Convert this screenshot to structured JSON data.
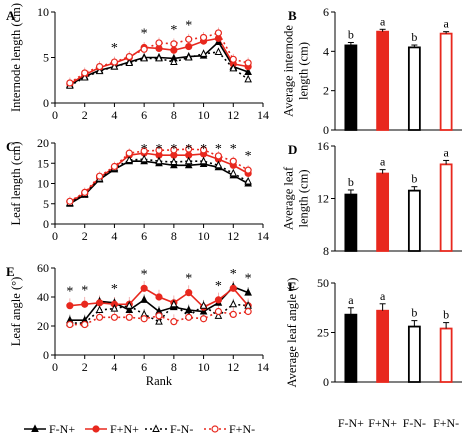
{
  "series_styles": [
    {
      "name": "F-N+",
      "color": "#000000",
      "dash": "",
      "marker": "tri-filled"
    },
    {
      "name": "F+N+",
      "color": "#e8281e",
      "dash": "",
      "marker": "circle-filled"
    },
    {
      "name": "F-N-",
      "color": "#000000",
      "dash": "2,3",
      "marker": "tri-open"
    },
    {
      "name": "F+N-",
      "color": "#e8281e",
      "dash": "2,3",
      "marker": "circle-open"
    }
  ],
  "chart_data": [
    {
      "panel": "A",
      "type": "line",
      "ylabel": "Internode length (cm)",
      "xlabel": "",
      "xlim": [
        0,
        14
      ],
      "ylim": [
        0,
        10
      ],
      "xticks": [
        0,
        2,
        4,
        6,
        8,
        10,
        12,
        14
      ],
      "yticks": [
        0,
        5,
        10
      ],
      "x": [
        1,
        2,
        3,
        4,
        5,
        6,
        7,
        8,
        9,
        10,
        11,
        12,
        13
      ],
      "series": [
        {
          "name": "F-N+",
          "values": [
            2.0,
            2.9,
            3.6,
            4.0,
            4.5,
            5.0,
            5.0,
            4.9,
            5.1,
            5.2,
            6.7,
            4.0,
            3.4
          ]
        },
        {
          "name": "F+N+",
          "values": [
            2.1,
            3.1,
            3.9,
            4.4,
            5.0,
            6.1,
            6.0,
            5.8,
            6.2,
            6.8,
            7.1,
            4.3,
            4.0
          ]
        },
        {
          "name": "F-N-",
          "values": [
            1.9,
            2.8,
            3.5,
            4.0,
            4.4,
            4.9,
            4.9,
            4.5,
            5.0,
            5.4,
            5.6,
            3.8,
            2.6
          ]
        },
        {
          "name": "F+N-",
          "values": [
            2.2,
            3.3,
            4.0,
            4.5,
            5.1,
            5.9,
            6.6,
            6.5,
            7.0,
            7.2,
            7.7,
            4.8,
            4.4
          ]
        }
      ],
      "significance_x": [
        4,
        6,
        8,
        9
      ],
      "error_bars_visible": true
    },
    {
      "panel": "B",
      "type": "bar",
      "ylabel": "Average internode length (cm)",
      "categories": [
        "F-N+",
        "F+N+",
        "F-N-",
        "F+N-"
      ],
      "values": [
        4.3,
        5.0,
        4.2,
        4.9
      ],
      "errors": [
        0.15,
        0.12,
        0.12,
        0.1
      ],
      "letters": [
        "b",
        "a",
        "b",
        "a"
      ],
      "ylim": [
        0,
        6
      ],
      "yticks": [
        0,
        2,
        4,
        6
      ]
    },
    {
      "panel": "C",
      "type": "line",
      "ylabel": "Leaf length (cm)",
      "xlabel": "",
      "xlim": [
        0,
        14
      ],
      "ylim": [
        0,
        20
      ],
      "xticks": [
        0,
        2,
        4,
        6,
        8,
        10,
        12,
        14
      ],
      "yticks": [
        0,
        5,
        10,
        15,
        20
      ],
      "x": [
        1,
        2,
        3,
        4,
        5,
        6,
        7,
        8,
        9,
        10,
        11,
        12,
        13
      ],
      "series": [
        {
          "name": "F-N+",
          "values": [
            5.0,
            7.2,
            11.0,
            13.5,
            15.5,
            15.5,
            15.0,
            14.5,
            14.5,
            14.8,
            14.0,
            12.0,
            10.0
          ]
        },
        {
          "name": "F+N+",
          "values": [
            5.5,
            7.5,
            11.5,
            14.0,
            17.0,
            17.5,
            17.0,
            17.0,
            17.0,
            17.3,
            16.0,
            14.5,
            12.5
          ]
        },
        {
          "name": "F-N-",
          "values": [
            5.2,
            7.4,
            11.2,
            13.8,
            15.8,
            16.0,
            15.5,
            15.3,
            15.5,
            15.5,
            14.5,
            12.5,
            10.5
          ]
        },
        {
          "name": "F+N-",
          "values": [
            5.6,
            7.8,
            11.8,
            14.2,
            17.5,
            18.0,
            18.2,
            18.3,
            18.5,
            18.3,
            16.8,
            15.5,
            13.3
          ]
        }
      ],
      "significance_x": [
        6,
        7,
        8,
        9,
        10,
        11,
        12,
        13
      ],
      "error_bars_visible": true
    },
    {
      "panel": "D",
      "type": "bar",
      "ylabel": "Average leaf length (cm)",
      "categories": [
        "F-N+",
        "F+N+",
        "F-N-",
        "F+N-"
      ],
      "values": [
        12.3,
        13.9,
        12.6,
        14.6
      ],
      "errors": [
        0.35,
        0.3,
        0.3,
        0.3
      ],
      "letters": [
        "b",
        "a",
        "b",
        "a"
      ],
      "ylim": [
        8,
        16
      ],
      "yticks": [
        8,
        12,
        16
      ]
    },
    {
      "panel": "E",
      "type": "line",
      "ylabel": "Leaf angle (°)",
      "xlabel": "Rank",
      "xlim": [
        0,
        14
      ],
      "ylim": [
        0,
        60
      ],
      "xticks": [
        0,
        2,
        4,
        6,
        8,
        10,
        12,
        14
      ],
      "yticks": [
        0,
        20,
        40,
        60
      ],
      "x": [
        1,
        2,
        3,
        4,
        5,
        6,
        7,
        8,
        9,
        10,
        11,
        12,
        13
      ],
      "series": [
        {
          "name": "F-N+",
          "values": [
            24,
            24,
            37,
            36,
            31,
            38,
            30,
            33,
            31,
            30,
            36,
            47,
            43
          ]
        },
        {
          "name": "F+N+",
          "values": [
            34,
            35,
            36,
            35,
            35,
            46,
            40,
            36,
            43,
            33,
            38,
            46,
            34
          ]
        },
        {
          "name": "F-N-",
          "values": [
            22,
            22,
            31,
            32,
            34,
            28,
            23,
            35,
            27,
            34,
            27,
            35,
            34
          ]
        },
        {
          "name": "F+N-",
          "values": [
            21,
            21,
            26,
            26,
            26,
            25,
            27,
            23,
            26,
            25,
            30,
            28,
            30
          ]
        }
      ],
      "significance_x": [
        1,
        2,
        4,
        6,
        9,
        11,
        12,
        13
      ],
      "error_bars_visible": true
    },
    {
      "panel": "F",
      "type": "bar",
      "ylabel": "Average leaf angle (°)",
      "categories": [
        "F-N+",
        "F+N+",
        "F-N-",
        "F+N-"
      ],
      "values": [
        34,
        36,
        28,
        27
      ],
      "errors": [
        3.5,
        3.5,
        3.0,
        3.0
      ],
      "letters": [
        "a",
        "a",
        "b",
        "b"
      ],
      "ylim": [
        0,
        50
      ],
      "yticks": [
        0,
        25,
        50
      ]
    }
  ],
  "legend": {
    "position": "bottom-left",
    "entries": [
      "F-N+",
      "F+N+",
      "F-N-",
      "F+N-"
    ]
  }
}
